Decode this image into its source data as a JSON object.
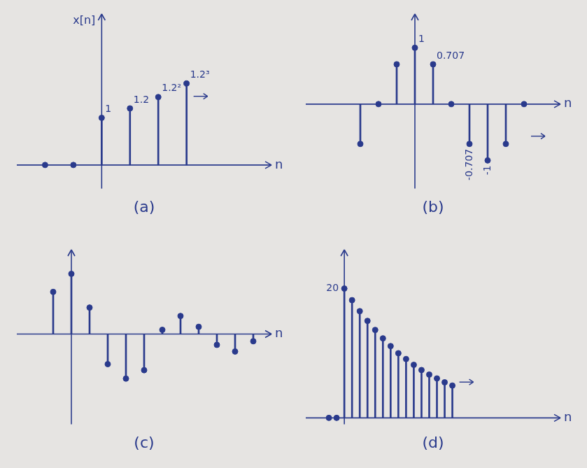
{
  "chart_data": [
    {
      "type": "stem",
      "title": "(a)",
      "xlabel": "n",
      "ylabel": "x[n]",
      "x": [
        -2,
        -1,
        0,
        1,
        2,
        3
      ],
      "values": [
        0,
        0,
        1,
        1.2,
        1.44,
        1.728
      ],
      "value_labels": [
        null,
        null,
        "1",
        "1.2",
        "1.2²",
        "1.2³"
      ],
      "data_labels": true,
      "xlim": [
        -3,
        6
      ],
      "ylim": [
        -0.5,
        3.2
      ],
      "tick_labels": false,
      "grid": false,
      "color": "#2a3a8c",
      "marker": "circle"
    },
    {
      "type": "stem",
      "title": "(b)",
      "xlabel": "n",
      "x": [
        -3,
        -2,
        -1,
        0,
        1,
        2,
        3,
        4,
        5,
        6
      ],
      "values": [
        -0.707,
        0,
        0.707,
        1,
        0.707,
        0,
        -0.707,
        -1,
        -0.707,
        0
      ],
      "value_labels": [
        null,
        null,
        null,
        "1",
        "0.707",
        null,
        "-0.707",
        "-1",
        null,
        null
      ],
      "data_labels": true,
      "xlim": [
        -6,
        8
      ],
      "ylim": [
        -1.5,
        1.6
      ],
      "tick_labels": false,
      "grid": false,
      "color": "#2a3a8c",
      "marker": "circle"
    },
    {
      "type": "stem",
      "title": "(c)",
      "xlabel": "n",
      "x": [
        -1,
        0,
        1,
        2,
        3,
        4,
        5,
        6,
        7,
        8,
        9,
        10
      ],
      "values": [
        0.7,
        1,
        0.44,
        -0.5,
        -0.74,
        -0.6,
        0.07,
        0.3,
        0.12,
        -0.18,
        -0.29,
        -0.12
      ],
      "data_labels": false,
      "xlim": [
        -3,
        11
      ],
      "ylim": [
        -1.5,
        1.4
      ],
      "tick_labels": false,
      "grid": false,
      "color": "#2a3a8c",
      "marker": "circle"
    },
    {
      "type": "stem",
      "title": "(d)",
      "xlabel": "n",
      "x": [
        -2,
        -1,
        0,
        1,
        2,
        3,
        4,
        5,
        6,
        7,
        8,
        9,
        10,
        11,
        12,
        13,
        14
      ],
      "values": [
        0,
        0,
        20,
        18.2,
        16.5,
        15,
        13.6,
        12.3,
        11.1,
        10,
        9.1,
        8.2,
        7.4,
        6.7,
        6.1,
        5.5,
        5
      ],
      "data_labels": false,
      "xlim": [
        -5,
        28
      ],
      "ylim": [
        -1,
        26
      ],
      "yticks": [
        20
      ],
      "tick_labels": "y",
      "grid": false,
      "color": "#2a3a8c",
      "marker": "circle"
    }
  ]
}
